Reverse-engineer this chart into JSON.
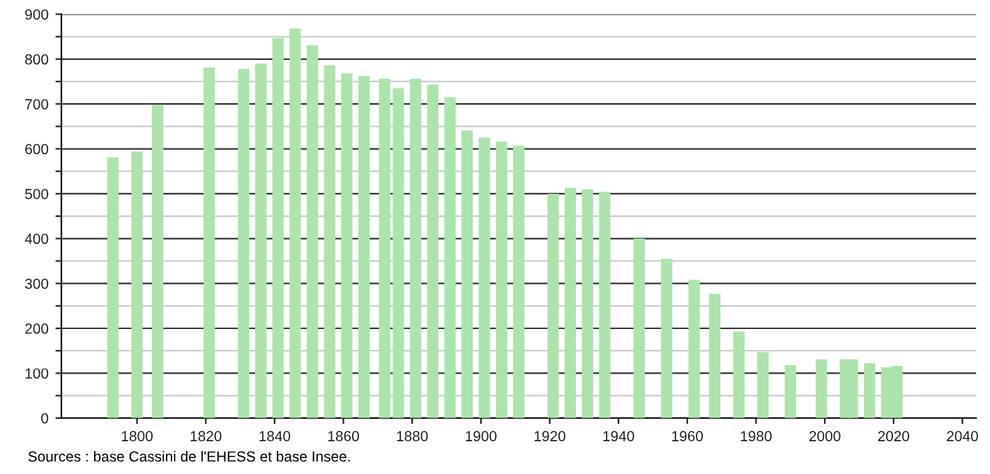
{
  "chart_data": {
    "type": "bar",
    "x": [
      1793,
      1800,
      1806,
      1821,
      1831,
      1836,
      1841,
      1846,
      1851,
      1856,
      1861,
      1866,
      1872,
      1876,
      1881,
      1886,
      1891,
      1896,
      1901,
      1906,
      1911,
      1921,
      1926,
      1931,
      1936,
      1946,
      1954,
      1962,
      1968,
      1975,
      1982,
      1990,
      1999,
      2006,
      2008,
      2013,
      2018,
      2021
    ],
    "values": [
      581,
      594,
      698,
      781,
      778,
      790,
      847,
      868,
      831,
      786,
      768,
      762,
      756,
      735,
      756,
      743,
      715,
      641,
      625,
      616,
      607,
      500,
      513,
      510,
      504,
      400,
      355,
      308,
      277,
      193,
      147,
      118,
      131,
      131,
      131,
      122,
      113,
      116
    ],
    "color": "#ade3ad",
    "xlim": [
      1778,
      2044
    ],
    "xticks": [
      1800,
      1820,
      1840,
      1860,
      1880,
      1900,
      1920,
      1940,
      1960,
      1980,
      2000,
      2020,
      2040
    ],
    "ylim": [
      0,
      900
    ],
    "yticks": [
      0,
      {
        "value": 50,
        "label": null
      },
      100,
      {
        "value": 150,
        "label": null
      },
      200,
      {
        "value": 250,
        "label": null
      },
      300,
      {
        "value": 350,
        "label": null
      },
      400,
      {
        "value": 450,
        "label": null
      },
      500,
      {
        "value": 550,
        "label": null
      },
      600,
      {
        "value": 650,
        "label": null
      },
      700,
      {
        "value": 750,
        "label": null
      },
      800,
      {
        "value": 850,
        "label": null
      },
      900
    ],
    "grid": "y",
    "annotations": [
      "Sources : base Cassini de l'EHESS et base Insee."
    ]
  }
}
